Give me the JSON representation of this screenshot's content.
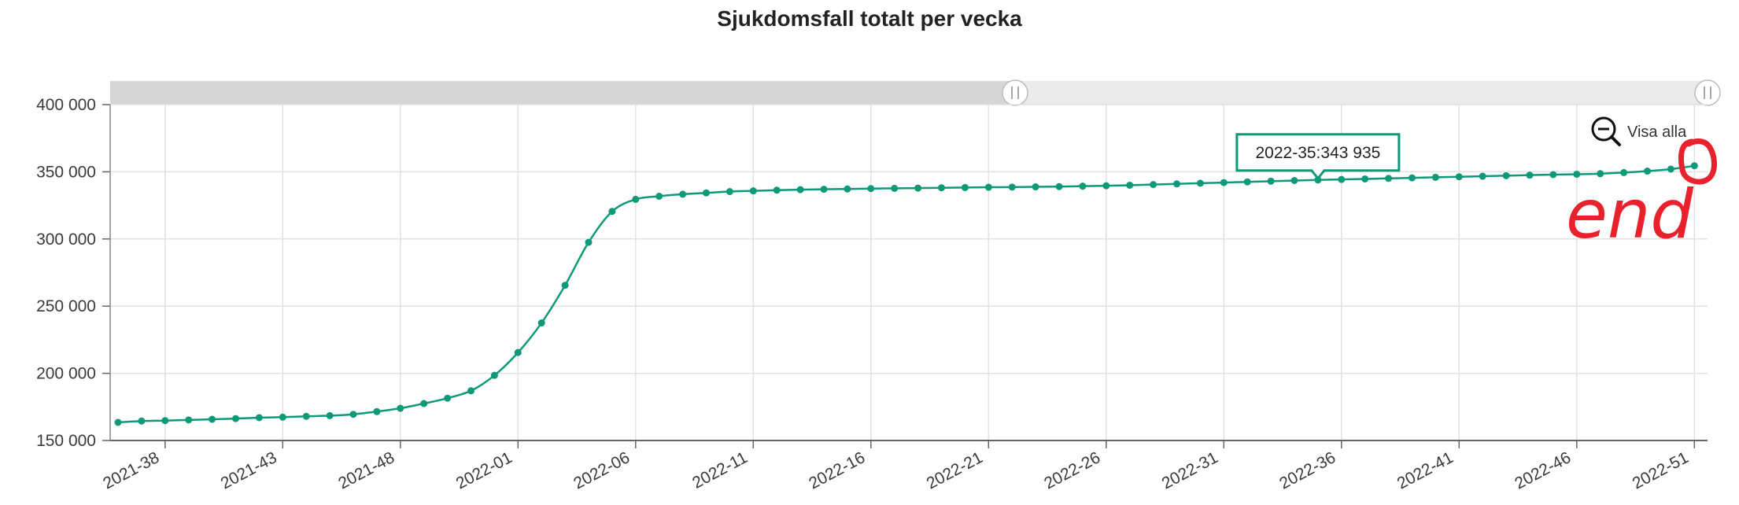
{
  "chart_data": {
    "type": "line",
    "title": "Sjukdomsfall totalt per vecka",
    "xlabel": "",
    "ylabel": "",
    "ylim": [
      150000,
      400000
    ],
    "yticks": [
      "150 000",
      "200 000",
      "250 000",
      "300 000",
      "350 000",
      "400 000"
    ],
    "ytick_values": [
      150000,
      200000,
      250000,
      300000,
      350000,
      400000
    ],
    "xticks": [
      "2021-38",
      "2021-43",
      "2021-48",
      "2022-01",
      "2022-06",
      "2022-11",
      "2022-16",
      "2022-21",
      "2022-26",
      "2022-31",
      "2022-36",
      "2022-41",
      "2022-46",
      "2022-51"
    ],
    "grid": true,
    "line_color": "#0e9a7a",
    "series": [
      {
        "values": [
          163500,
          164500,
          164800,
          165300,
          165800,
          166300,
          167000,
          167400,
          168000,
          168500,
          169500,
          171500,
          174000,
          177500,
          181500,
          187000,
          198500,
          215500,
          237500,
          265500,
          297500,
          320500,
          329500,
          331800,
          333300,
          334300,
          335300,
          335800,
          336300,
          336700,
          337000,
          337200,
          337500,
          337700,
          337900,
          338100,
          338300,
          338500,
          338600,
          338800,
          339000,
          339300,
          339600,
          340000,
          340500,
          341000,
          341500,
          342000,
          342500,
          343000,
          343500,
          343935,
          344300,
          344700,
          345100,
          345500,
          345900,
          346300,
          346700,
          347100,
          347500,
          347900,
          348200,
          348600,
          349400,
          350500,
          352000,
          354500
        ]
      }
    ],
    "x_start": "2021-36",
    "x_end": "2022-51",
    "tooltip": {
      "label": "2022-35:343 935",
      "x_index": 51
    },
    "zoom_label": "Visa alla",
    "annotation": {
      "text": "end",
      "color": "#e8212d"
    }
  }
}
